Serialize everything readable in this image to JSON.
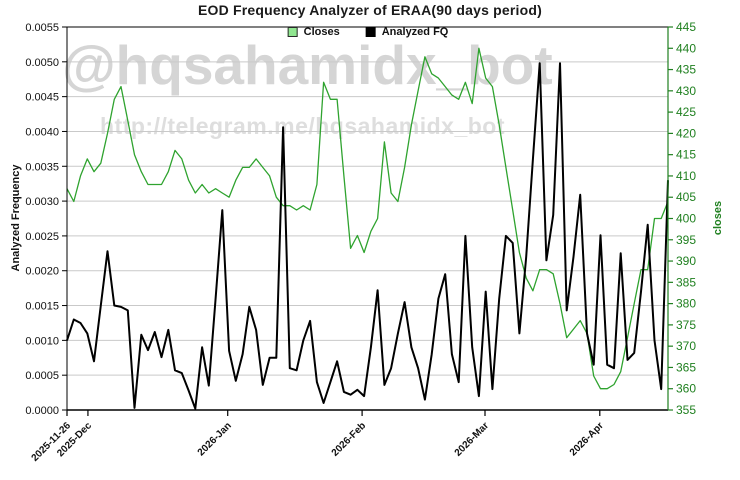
{
  "title": "EOD Frequency Analyzer of ERAA(90 days period)",
  "watermark": {
    "line1": "@hqsahamidx_bot",
    "line2": "http://telegram.me/hqsahamidx_bot"
  },
  "colors": {
    "closes_line": "#2fa32f",
    "closes_axis_text": "#208020",
    "fq_line": "#000000",
    "grid": "#c9c9c9",
    "frame": "#000000",
    "legend_swatch_fill": "#90e690",
    "legend_swatch_border": "#2a2a2a"
  },
  "chart_data": {
    "type": "line",
    "title": "EOD Frequency Analyzer of ERAA(90 days period)",
    "xlabel": "",
    "ylabel_left": "Analyzed Frequency",
    "ylabel_right": "closes",
    "ylim_left": [
      0.0,
      0.0055
    ],
    "ylim_right": [
      355,
      445
    ],
    "grid": true,
    "legend_position": "top-center",
    "x_tick_labels": [
      "2025-11-26",
      "2025-Dec",
      "2026-Jan",
      "2026-Feb",
      "2026-Mar",
      "2026-Apr"
    ],
    "x_tick_positions": [
      0,
      3.1,
      23.8,
      43.7,
      61.9,
      78.9
    ],
    "y_ticks_left": [
      "0.0000",
      "0.0005",
      "0.0010",
      "0.0015",
      "0.0020",
      "0.0025",
      "0.0030",
      "0.0035",
      "0.0040",
      "0.0045",
      "0.0050",
      "0.0055"
    ],
    "y_ticks_right": [
      355,
      360,
      365,
      370,
      375,
      380,
      385,
      390,
      395,
      400,
      405,
      410,
      415,
      420,
      425,
      430,
      435,
      440,
      445
    ],
    "series": [
      {
        "name": "Closes",
        "axis": "right",
        "values": [
          407,
          404,
          410,
          414,
          411,
          413,
          420,
          428,
          431,
          423,
          415,
          411,
          408,
          408,
          408,
          411,
          416,
          414,
          409,
          406,
          408,
          406,
          407,
          406,
          405,
          409,
          412,
          412,
          414,
          412,
          410,
          405,
          403,
          403,
          402,
          403,
          402,
          408,
          432,
          428,
          428,
          410,
          393,
          396,
          392,
          397,
          400,
          418,
          406,
          404,
          412,
          422,
          430,
          438,
          434,
          433,
          431,
          429,
          428,
          432,
          427,
          440,
          433,
          431,
          422,
          412,
          402,
          392,
          386,
          383,
          388,
          388,
          387,
          380,
          372,
          374,
          376,
          373,
          363,
          360,
          360,
          361,
          364,
          372,
          380,
          388,
          388,
          400,
          400,
          404
        ]
      },
      {
        "name": "Analyzed FQ",
        "axis": "left",
        "values": [
          0.001,
          0.0013,
          0.00125,
          0.0011,
          0.0007,
          0.0015,
          0.00228,
          0.0015,
          0.00148,
          0.00143,
          3e-05,
          0.00108,
          0.00086,
          0.00112,
          0.00076,
          0.00115,
          0.00057,
          0.00053,
          0.00028,
          2e-05,
          0.0009,
          0.00035,
          0.0016,
          0.00287,
          0.00085,
          0.00042,
          0.0008,
          0.00148,
          0.00115,
          0.00036,
          0.00075,
          0.00075,
          0.00406,
          0.0006,
          0.00057,
          0.001,
          0.00128,
          0.0004,
          0.0001,
          0.0004,
          0.0007,
          0.00026,
          0.00022,
          0.00029,
          0.0002,
          0.0009,
          0.00172,
          0.00036,
          0.0006,
          0.0011,
          0.00155,
          0.0009,
          0.0006,
          0.00015,
          0.0008,
          0.0016,
          0.00195,
          0.0008,
          0.0004,
          0.0025,
          0.0009,
          0.0002,
          0.0017,
          0.0003,
          0.0016,
          0.0025,
          0.0024,
          0.0011,
          0.0022,
          0.0036,
          0.00498,
          0.00215,
          0.0028,
          0.00498,
          0.00143,
          0.0022,
          0.00309,
          0.0011,
          0.00065,
          0.00251,
          0.00065,
          0.0006,
          0.00225,
          0.00072,
          0.00082,
          0.0017,
          0.00266,
          0.001,
          0.0003,
          0.0033
        ]
      }
    ]
  }
}
